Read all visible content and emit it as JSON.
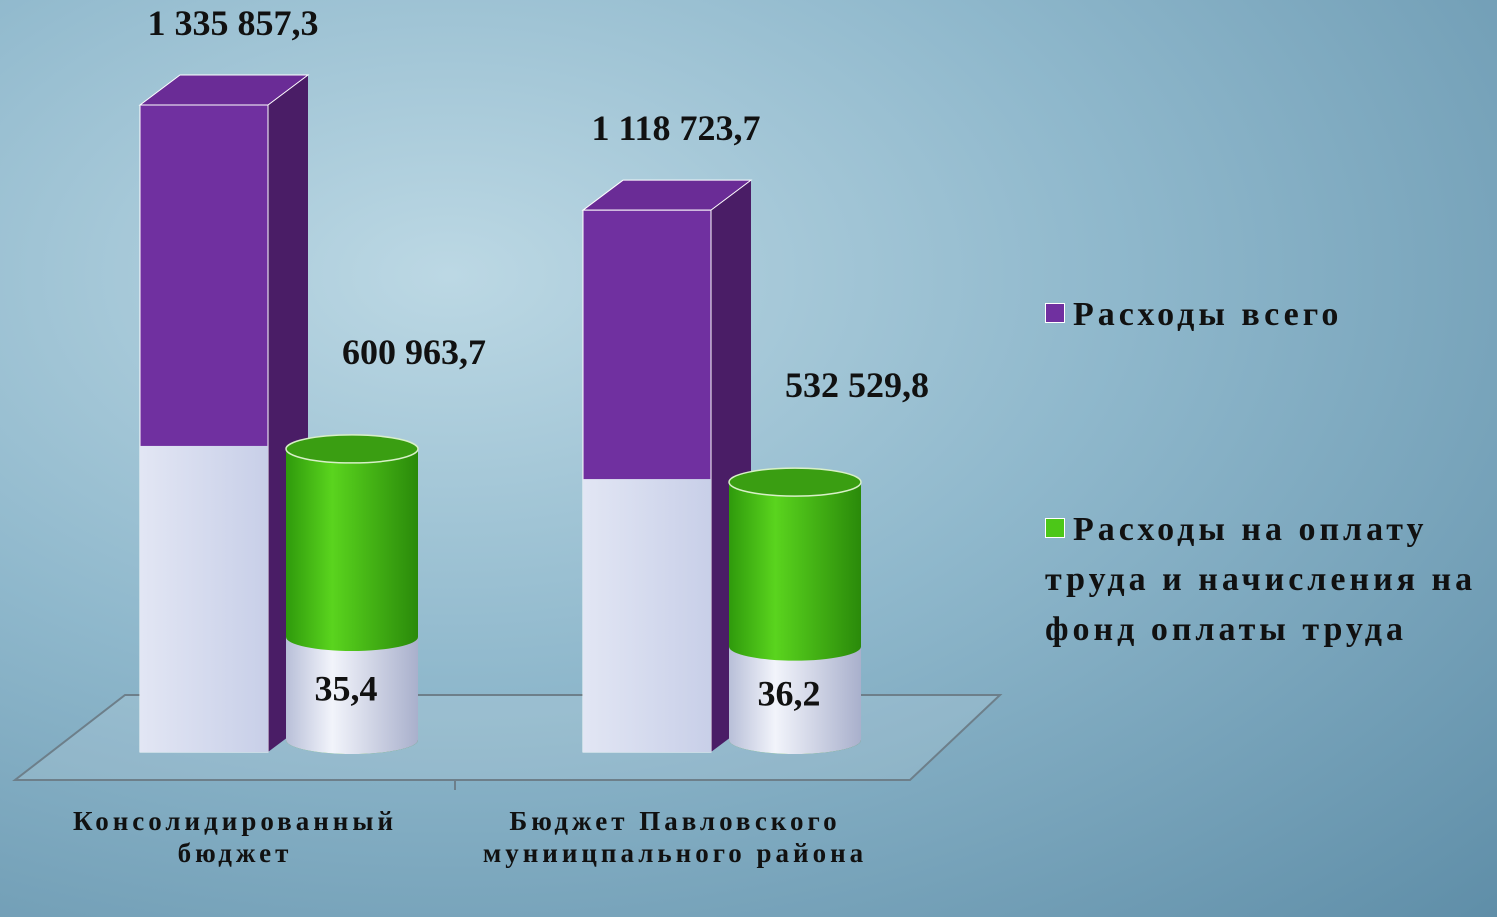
{
  "chart_data": {
    "type": "bar3d",
    "categories": [
      "Консолидированный бюджет",
      "Бюджет Павловского муниицпального района"
    ],
    "series": [
      {
        "name": "Расходы всего",
        "color": "#7030a0",
        "values": [
          1335857.3,
          1118723.7
        ],
        "value_labels": [
          "1 335 857,3",
          "1 118 723,7"
        ]
      },
      {
        "name": "Расходы на оплату труда и начисления на фонд оплаты труда",
        "color": "#4cc718",
        "values": [
          600963.7,
          532529.8
        ],
        "value_labels": [
          "600 963,7",
          "532 529,8"
        ]
      }
    ],
    "shares": {
      "values": [
        35.4,
        36.2
      ],
      "value_labels": [
        "35,4",
        "36,2"
      ]
    },
    "legend": "right"
  }
}
